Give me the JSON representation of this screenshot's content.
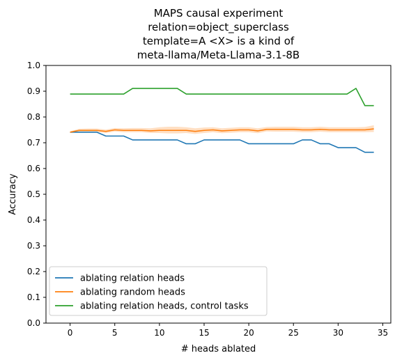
{
  "chart_data": {
    "type": "line",
    "title": [
      "MAPS causal experiment",
      "relation=object_superclass",
      "template=A <X> is a kind of",
      "meta-llama/Meta-Llama-3.1-8B"
    ],
    "xlabel": "# heads ablated",
    "ylabel": "Accuracy",
    "xlim": [
      -2.7,
      35.9
    ],
    "ylim": [
      0.0,
      1.0
    ],
    "xticks": [
      0,
      5,
      10,
      15,
      20,
      25,
      30,
      35
    ],
    "yticks": [
      0.0,
      0.1,
      0.2,
      0.3,
      0.4,
      0.5,
      0.6,
      0.7,
      0.8,
      0.9,
      1.0
    ],
    "x": [
      0,
      1,
      2,
      3,
      4,
      5,
      6,
      7,
      8,
      9,
      10,
      11,
      12,
      13,
      14,
      15,
      16,
      17,
      18,
      19,
      20,
      21,
      22,
      23,
      24,
      25,
      26,
      27,
      28,
      29,
      30,
      31,
      32,
      33,
      34
    ],
    "legend_position": "lower-left",
    "grid": false,
    "series": [
      {
        "name": "ablating relation heads",
        "color": "#1f77b4",
        "values": [
          0.741,
          0.741,
          0.741,
          0.741,
          0.726,
          0.726,
          0.726,
          0.711,
          0.711,
          0.711,
          0.711,
          0.711,
          0.711,
          0.696,
          0.696,
          0.711,
          0.711,
          0.711,
          0.711,
          0.711,
          0.696,
          0.696,
          0.696,
          0.696,
          0.696,
          0.696,
          0.711,
          0.711,
          0.696,
          0.696,
          0.681,
          0.681,
          0.681,
          0.663,
          0.663
        ]
      },
      {
        "name": "ablating random heads",
        "color": "#ff7f0e",
        "band_color": "#ff7f0e",
        "values": [
          0.741,
          0.748,
          0.748,
          0.748,
          0.744,
          0.75,
          0.748,
          0.748,
          0.748,
          0.746,
          0.748,
          0.748,
          0.748,
          0.748,
          0.744,
          0.748,
          0.75,
          0.746,
          0.748,
          0.75,
          0.75,
          0.746,
          0.752,
          0.752,
          0.752,
          0.752,
          0.75,
          0.75,
          0.752,
          0.75,
          0.75,
          0.75,
          0.75,
          0.75,
          0.754
        ],
        "lower": [
          0.738,
          0.742,
          0.742,
          0.742,
          0.738,
          0.744,
          0.741,
          0.741,
          0.741,
          0.738,
          0.738,
          0.736,
          0.736,
          0.738,
          0.734,
          0.738,
          0.741,
          0.737,
          0.739,
          0.741,
          0.741,
          0.737,
          0.744,
          0.743,
          0.743,
          0.743,
          0.741,
          0.741,
          0.743,
          0.741,
          0.741,
          0.741,
          0.741,
          0.741,
          0.742
        ],
        "upper": [
          0.744,
          0.754,
          0.755,
          0.755,
          0.751,
          0.757,
          0.756,
          0.757,
          0.757,
          0.756,
          0.76,
          0.762,
          0.762,
          0.76,
          0.756,
          0.759,
          0.76,
          0.756,
          0.758,
          0.76,
          0.76,
          0.756,
          0.761,
          0.762,
          0.762,
          0.762,
          0.76,
          0.76,
          0.762,
          0.76,
          0.76,
          0.76,
          0.76,
          0.761,
          0.768
        ]
      },
      {
        "name": "ablating relation heads, control tasks",
        "color": "#2ca02c",
        "values": [
          0.889,
          0.889,
          0.889,
          0.889,
          0.889,
          0.889,
          0.889,
          0.911,
          0.911,
          0.911,
          0.911,
          0.911,
          0.911,
          0.889,
          0.889,
          0.889,
          0.889,
          0.889,
          0.889,
          0.889,
          0.889,
          0.889,
          0.889,
          0.889,
          0.889,
          0.889,
          0.889,
          0.889,
          0.889,
          0.889,
          0.889,
          0.889,
          0.911,
          0.844,
          0.844
        ]
      }
    ]
  }
}
